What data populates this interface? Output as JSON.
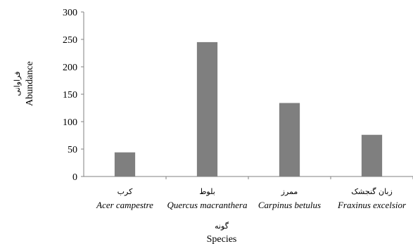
{
  "chart_data": {
    "type": "bar",
    "categories": [
      {
        "fa": "کرب",
        "en": "Acer campestre"
      },
      {
        "fa": "بلوط",
        "en": "Quercus macranthera"
      },
      {
        "fa": "ممرز",
        "en": "Carpinus betulus"
      },
      {
        "fa": "زبان گنجشک",
        "en": "Fraxinus excelsior"
      }
    ],
    "values": [
      44,
      245,
      134,
      76
    ],
    "ylim": [
      0,
      300
    ],
    "yticks": [
      0,
      50,
      100,
      150,
      200,
      250,
      300
    ],
    "ylabel_fa": "فراوانی",
    "ylabel": "Abundance",
    "xlabel_fa": "گونه",
    "xlabel": "Species",
    "bar_color": "#7f7f7f",
    "axis_color": "#808080",
    "grid": false,
    "legend": "none"
  }
}
